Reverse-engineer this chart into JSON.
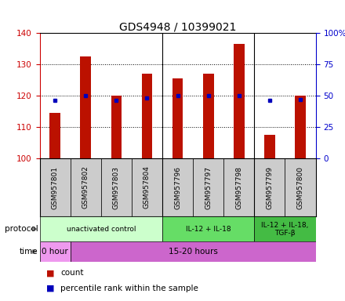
{
  "title": "GDS4948 / 10399021",
  "samples": [
    "GSM957801",
    "GSM957802",
    "GSM957803",
    "GSM957804",
    "GSM957796",
    "GSM957797",
    "GSM957798",
    "GSM957799",
    "GSM957800"
  ],
  "count_values": [
    114.5,
    132.5,
    120.0,
    127.0,
    125.5,
    127.0,
    136.5,
    107.5,
    120.0
  ],
  "percentile_values": [
    46,
    50,
    46,
    48,
    50,
    50,
    50,
    46,
    47
  ],
  "ylim_left": [
    100,
    140
  ],
  "ylim_right": [
    0,
    100
  ],
  "yticks_left": [
    100,
    110,
    120,
    130,
    140
  ],
  "yticks_right": [
    0,
    25,
    50,
    75,
    100
  ],
  "bar_color": "#bb1100",
  "dot_color": "#0000bb",
  "bar_base": 100,
  "protocol_groups": [
    {
      "label": "unactivated control",
      "start": 0,
      "end": 4,
      "color": "#ccffcc"
    },
    {
      "label": "IL-12 + IL-18",
      "start": 4,
      "end": 7,
      "color": "#66dd66"
    },
    {
      "label": "IL-12 + IL-18,\nTGF-β",
      "start": 7,
      "end": 9,
      "color": "#44bb44"
    }
  ],
  "time_groups": [
    {
      "label": "0 hour",
      "start": 0,
      "end": 1,
      "color": "#ee99ee"
    },
    {
      "label": "15-20 hours",
      "start": 1,
      "end": 9,
      "color": "#cc66cc"
    }
  ],
  "legend_count_label": "count",
  "legend_pct_label": "percentile rank within the sample",
  "left_axis_color": "#cc0000",
  "right_axis_color": "#0000cc",
  "title_fontsize": 10,
  "tick_label_fontsize": 7.5,
  "bar_width": 0.35,
  "bg_color": "#ffffff",
  "sample_bg": "#cccccc",
  "group_separators": [
    3.5,
    6.5
  ]
}
